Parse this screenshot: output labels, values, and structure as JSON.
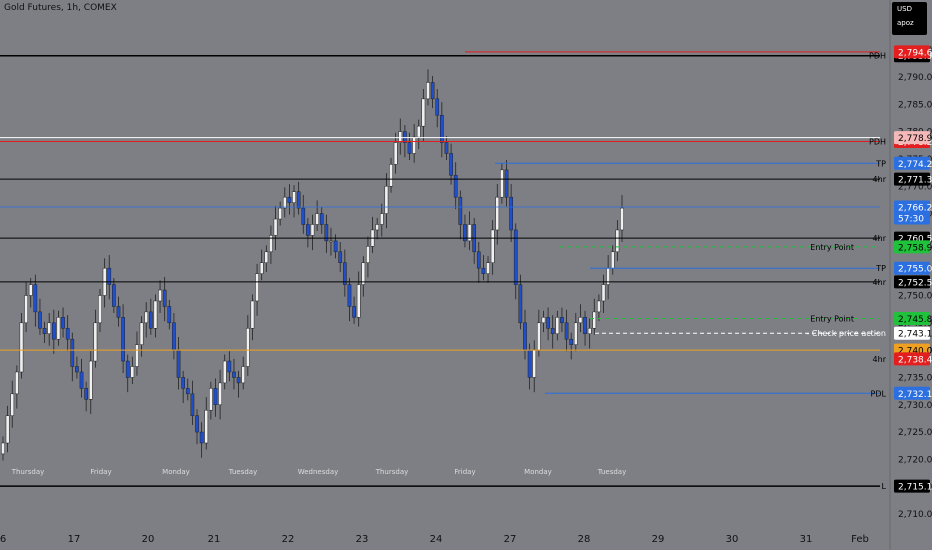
{
  "header": {
    "symbol": "Gold Futures, 1h, COMEX",
    "currency": "USD",
    "unit": "apoz"
  },
  "colors": {
    "background": "#7d7f85",
    "up": "#f0f0f0",
    "down": "#1f4fcc",
    "red_tag": "#e31e1e",
    "pink_tag": "#f5b8b8",
    "blue_tag": "#2b6fe0",
    "green_tag": "#1fc23a",
    "orange_tag": "#f0a020",
    "black_tag": "#000000",
    "white_tag": "#ffffff"
  },
  "chart_data": {
    "type": "candlestick",
    "y_range": [
      2707,
      2798
    ],
    "y_ticks": [
      2710,
      2715,
      2720,
      2725,
      2730,
      2735,
      2740,
      2745,
      2750,
      2755,
      2760,
      2765,
      2770,
      2775,
      2780,
      2785,
      2790,
      2795
    ],
    "x_date_labels": [
      "6",
      "17",
      "20",
      "21",
      "22",
      "23",
      "24",
      "27",
      "28",
      "29",
      "30",
      "31",
      "Feb"
    ],
    "session_labels": [
      "Thursday",
      "Friday",
      "Monday",
      "Tuesday",
      "Wednesday",
      "Thursday",
      "Friday",
      "Monday",
      "Tuesday"
    ],
    "candle_closes": [
      2723,
      2728,
      2732,
      2736,
      2745,
      2750,
      2752,
      2747,
      2744,
      2743,
      2745,
      2742,
      2746,
      2744,
      2742,
      2737,
      2736,
      2733,
      2731,
      2738,
      2745,
      2750,
      2755,
      2752,
      2748,
      2746,
      2738,
      2735,
      2737,
      2741,
      2745,
      2747,
      2744,
      2749,
      2751,
      2748,
      2745,
      2740,
      2735,
      2733,
      2732,
      2728,
      2725,
      2723,
      2729,
      2733,
      2730,
      2734,
      2738,
      2736,
      2735,
      2734,
      2737,
      2744,
      2749,
      2754,
      2756,
      2758,
      2761,
      2764,
      2766,
      2768,
      2767,
      2769,
      2766,
      2763,
      2761,
      2763,
      2765,
      2763,
      2760,
      2760,
      2758,
      2756,
      2752,
      2748,
      2746,
      2752,
      2756,
      2759,
      2762,
      2763,
      2765,
      2770,
      2774,
      2778,
      2780,
      2778,
      2776,
      2779,
      2781,
      2786,
      2789,
      2786,
      2783,
      2778,
      2776,
      2772,
      2768,
      2763,
      2760,
      2763,
      2758,
      2755,
      2754,
      2756,
      2762,
      2768,
      2773,
      2768,
      2762,
      2752,
      2745,
      2740,
      2735,
      2740,
      2745,
      2746,
      2744,
      2743,
      2746,
      2745,
      2742,
      2741,
      2745,
      2746,
      2743,
      2744,
      2747,
      2749,
      2752,
      2755,
      2758,
      2762,
      2766
    ],
    "levels": [
      {
        "label": "PDH",
        "price": 2793.9,
        "tag": "2,793.9"
      },
      {
        "label": "H",
        "price": 2794.6,
        "tag": "2,794.6"
      },
      {
        "label": "PDH",
        "price": 2778.2,
        "tag": "2,778.2"
      },
      {
        "label": "H",
        "price": 2778.9,
        "tag": "2,778.9"
      },
      {
        "label": "TP",
        "price": 2774.2,
        "tag": "2,774.2"
      },
      {
        "label": "4hr",
        "price": 2771.3,
        "tag": "2,771.3"
      },
      {
        "label": "",
        "price": 2766.2,
        "tag": "2,766.2",
        "sub": "57:30"
      },
      {
        "label": "4hr",
        "price": 2760.5,
        "tag": "2,760.5"
      },
      {
        "label": "Entry Point",
        "price": 2758.9,
        "tag": "2,758.9"
      },
      {
        "label": "TP",
        "price": 2755.0,
        "tag": "2,755.0"
      },
      {
        "label": "4hr",
        "price": 2752.5,
        "tag": "2,752.5"
      },
      {
        "label": "Entry Point",
        "price": 2745.8,
        "tag": "2,745.8"
      },
      {
        "label": "Check price action",
        "price": 2743.1,
        "tag": "2,743.1"
      },
      {
        "label": "",
        "price": 2740.0,
        "tag": "2,740.0"
      },
      {
        "label": "4hr",
        "price": 2738.4,
        "tag": "2,738.4"
      },
      {
        "label": "PDL",
        "price": 2732.1,
        "tag": "2,732.1"
      },
      {
        "label": "L",
        "price": 2715.1,
        "tag": "2,715.1"
      }
    ]
  }
}
